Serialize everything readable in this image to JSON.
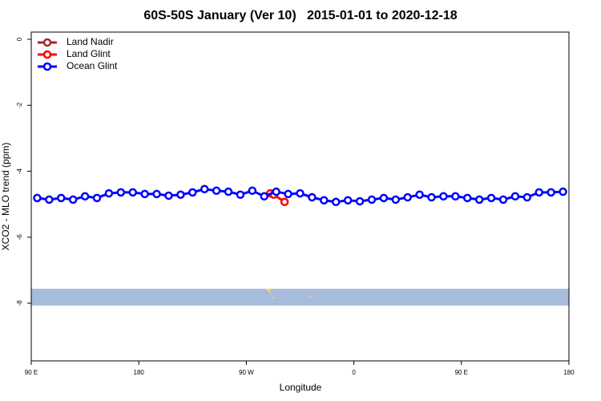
{
  "chart_data": {
    "type": "line",
    "title": "60S-50S January (Ver 10)   2015-01-01 to 2020-12-18",
    "x_label": "Longitude",
    "y_label": "XCO2 - MLO trend (ppm)",
    "xlim": [
      90,
      540
    ],
    "xticks": [
      {
        "value": 90,
        "label": "90 E"
      },
      180,
      {
        "value": 270,
        "label": "90 W"
      },
      {
        "value": 360,
        "label": "0"
      },
      {
        "value": 450,
        "label": "90 E"
      },
      {
        "value": 540,
        "label": "180"
      }
    ],
    "ylim": [
      -9.75,
      0.22
    ],
    "yticks": [
      0,
      -2,
      -4,
      -6,
      -8
    ],
    "legend": "top-left",
    "series": [
      {
        "name": "Land Nadir",
        "color": "#a52a2a",
        "x": [],
        "values": []
      },
      {
        "name": "Land Glint",
        "color": "#ff0000",
        "x": [
          290,
          293,
          302
        ],
        "values": [
          -4.67,
          -4.71,
          -4.93
        ]
      },
      {
        "name": "Ocean Glint",
        "color": "#0000ff",
        "x": [
          95,
          105,
          115,
          125,
          135,
          145,
          155,
          165,
          175,
          185,
          195,
          205,
          215,
          225,
          235,
          245,
          255,
          265,
          275,
          285,
          295,
          305,
          315,
          325,
          335,
          345,
          355,
          365,
          375,
          385,
          395,
          405,
          415,
          425,
          435,
          445,
          455,
          465,
          475,
          485,
          495,
          505,
          515,
          525,
          535
        ],
        "values": [
          -4.81,
          -4.86,
          -4.81,
          -4.86,
          -4.76,
          -4.81,
          -4.67,
          -4.64,
          -4.64,
          -4.69,
          -4.69,
          -4.74,
          -4.71,
          -4.64,
          -4.54,
          -4.59,
          -4.62,
          -4.71,
          -4.59,
          -4.76,
          -4.62,
          -4.69,
          -4.67,
          -4.79,
          -4.88,
          -4.93,
          -4.88,
          -4.91,
          -4.86,
          -4.81,
          -4.86,
          -4.79,
          -4.71,
          -4.79,
          -4.76,
          -4.76,
          -4.81,
          -4.86,
          -4.81,
          -4.86,
          -4.76,
          -4.79,
          -4.64,
          -4.64,
          -4.62
        ]
      }
    ]
  }
}
